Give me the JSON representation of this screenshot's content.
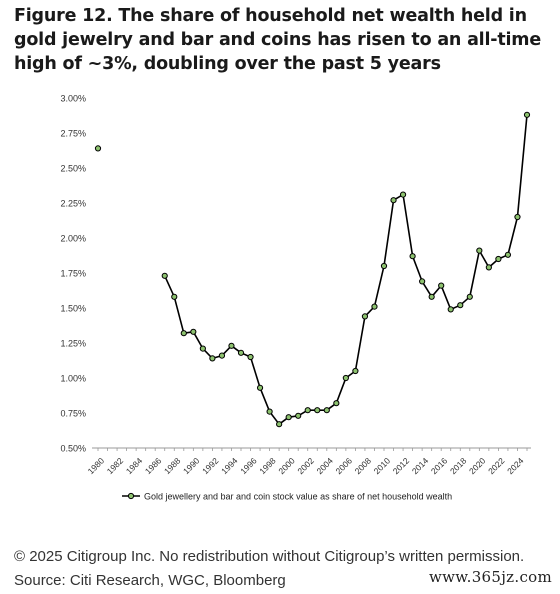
{
  "title": "Figure 12. The share of household net wealth held in gold jewelry and bar and coins has risen to an all-time high of ~3%, doubling over the past 5 years",
  "footer": {
    "copyright": "© 2025 Citigroup Inc. No redistribution without Citigroup’s written permission.",
    "source": "Source: Citi Research, WGC, Bloomberg",
    "watermark": "www.365jz.com"
  },
  "chart_data": {
    "type": "line",
    "xlabel": "",
    "ylabel": "",
    "x_ticks": [
      "1980",
      "1982",
      "1984",
      "1986",
      "1988",
      "1990",
      "1992",
      "1994",
      "1996",
      "1998",
      "2000",
      "2002",
      "2004",
      "2006",
      "2008",
      "2010",
      "2012",
      "2014",
      "2016",
      "2018",
      "2020",
      "2022",
      "2024"
    ],
    "y_ticks": [
      "0.50%",
      "0.75%",
      "1.00%",
      "1.25%",
      "1.50%",
      "1.75%",
      "2.00%",
      "2.25%",
      "2.50%",
      "2.75%",
      "3.00%"
    ],
    "ylim": [
      0.5,
      3.0
    ],
    "xlim": [
      1980,
      2025
    ],
    "grid": false,
    "legend_position": "bottom",
    "series": [
      {
        "name": "Gold jewellery and bar and coin stock value as share of net household wealth",
        "color": "#000000",
        "marker_fill": "#8dc26f",
        "points": [
          {
            "x": 1980,
            "y": 2.64,
            "gap_after": true
          },
          {
            "x": 1987,
            "y": 1.73
          },
          {
            "x": 1988,
            "y": 1.58
          },
          {
            "x": 1989,
            "y": 1.32
          },
          {
            "x": 1990,
            "y": 1.33
          },
          {
            "x": 1991,
            "y": 1.21
          },
          {
            "x": 1992,
            "y": 1.14
          },
          {
            "x": 1993,
            "y": 1.16
          },
          {
            "x": 1994,
            "y": 1.23
          },
          {
            "x": 1995,
            "y": 1.18
          },
          {
            "x": 1996,
            "y": 1.15
          },
          {
            "x": 1997,
            "y": 0.93
          },
          {
            "x": 1998,
            "y": 0.76
          },
          {
            "x": 1999,
            "y": 0.67
          },
          {
            "x": 2000,
            "y": 0.72
          },
          {
            "x": 2001,
            "y": 0.73
          },
          {
            "x": 2002,
            "y": 0.77
          },
          {
            "x": 2003,
            "y": 0.77
          },
          {
            "x": 2004,
            "y": 0.77
          },
          {
            "x": 2005,
            "y": 0.82
          },
          {
            "x": 2006,
            "y": 1.0
          },
          {
            "x": 2007,
            "y": 1.05
          },
          {
            "x": 2008,
            "y": 1.44
          },
          {
            "x": 2009,
            "y": 1.51
          },
          {
            "x": 2010,
            "y": 1.8
          },
          {
            "x": 2011,
            "y": 2.27
          },
          {
            "x": 2012,
            "y": 2.31
          },
          {
            "x": 2013,
            "y": 1.87
          },
          {
            "x": 2014,
            "y": 1.69
          },
          {
            "x": 2015,
            "y": 1.58
          },
          {
            "x": 2016,
            "y": 1.66
          },
          {
            "x": 2017,
            "y": 1.49
          },
          {
            "x": 2018,
            "y": 1.52
          },
          {
            "x": 2019,
            "y": 1.58
          },
          {
            "x": 2020,
            "y": 1.91
          },
          {
            "x": 2021,
            "y": 1.79
          },
          {
            "x": 2022,
            "y": 1.85
          },
          {
            "x": 2023,
            "y": 1.88
          },
          {
            "x": 2024,
            "y": 2.15
          },
          {
            "x": 2025,
            "y": 2.88
          }
        ]
      }
    ]
  }
}
